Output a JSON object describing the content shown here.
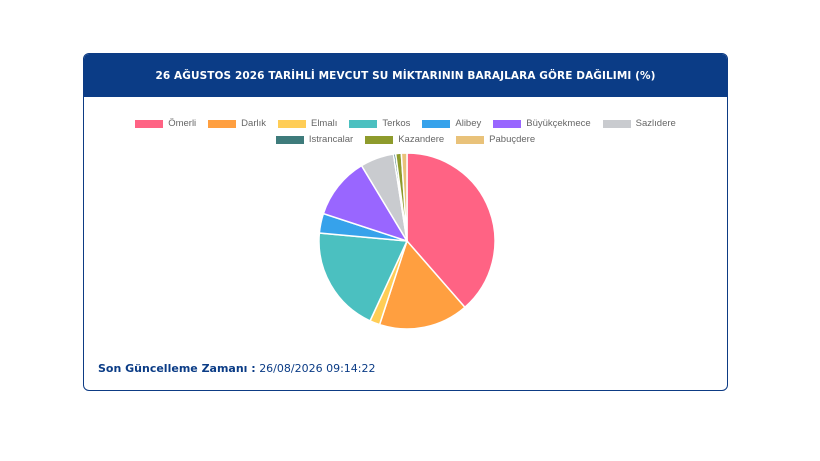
{
  "title": "26 AĞUSTOS 2026 TARİHLİ MEVCUT SU MİKTARININ BARAJLARA GÖRE DAĞILIMI (%)",
  "chart_data": {
    "type": "pie",
    "title": "26 AĞUSTOS 2026 TARİHLİ MEVCUT SU MİKTARININ BARAJLARA GÖRE DAĞILIMI (%)",
    "legend_position": "top",
    "categories": [
      "Ömerli",
      "Darlık",
      "Elmalı",
      "Terkos",
      "Alibey",
      "Büyükçekmece",
      "Sazlıdere",
      "Istrancalar",
      "Kazandere",
      "Pabuçdere"
    ],
    "values": [
      37.5,
      16.0,
      1.8,
      19.0,
      3.5,
      11.0,
      6.0,
      0.4,
      1.0,
      1.0
    ],
    "colors": [
      "#ff6384",
      "#ff9f40",
      "#ffcd56",
      "#4bc0c0",
      "#36a2eb",
      "#9966ff",
      "#c9cbcf",
      "#3e7b7b",
      "#8e9b2c",
      "#e9c27a"
    ]
  },
  "footer": {
    "label": "Son Güncelleme Zamanı :",
    "value": "26/08/2026 09:14:22"
  }
}
